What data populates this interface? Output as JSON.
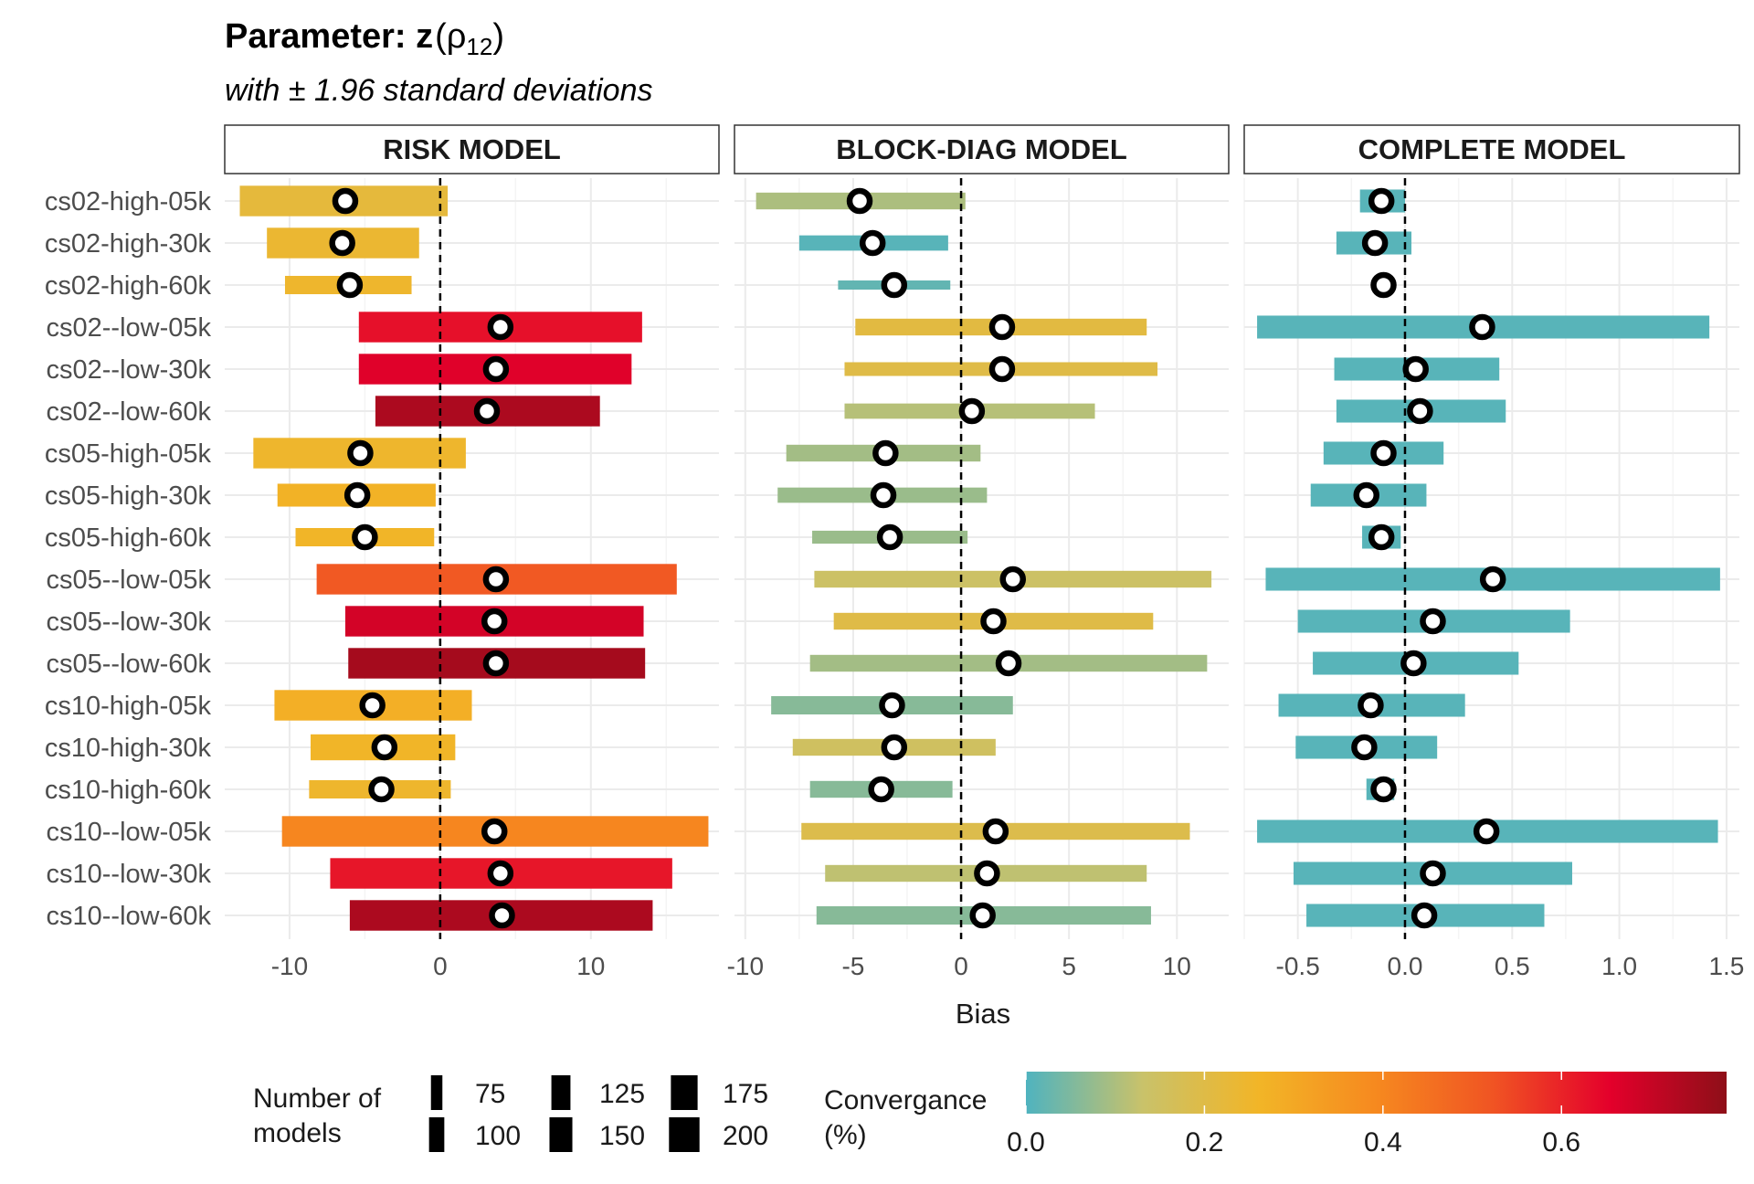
{
  "title": {
    "prefix": "Parameter: z",
    "rho": "ρ",
    "subscript": "12",
    "subtitle": "with ± 1.96 standard deviations"
  },
  "x_axis_title": "Bias",
  "legend": {
    "size_title": [
      "Number of",
      "models"
    ],
    "size_values": [
      "75",
      "100",
      "125",
      "150",
      "175",
      "200"
    ],
    "color_title": [
      "Convergance",
      "(%)"
    ],
    "color_ticks": [
      "0.0",
      "0.2",
      "0.4",
      "0.6"
    ],
    "gradient": [
      "#4fb3bf",
      "#c9c26a",
      "#f2b527",
      "#f6891f",
      "#f05423",
      "#e4002b",
      "#8e0f18"
    ]
  },
  "chart_data": {
    "type": "dot-interval",
    "rows": [
      "cs02-high-05k",
      "cs02-high-30k",
      "cs02-high-60k",
      "cs02--low-05k",
      "cs02--low-30k",
      "cs02--low-60k",
      "cs05-high-05k",
      "cs05-high-30k",
      "cs05-high-60k",
      "cs05--low-05k",
      "cs05--low-30k",
      "cs05--low-60k",
      "cs10-high-05k",
      "cs10-high-30k",
      "cs10-high-60k",
      "cs10--low-05k",
      "cs10--low-30k",
      "cs10--low-60k"
    ],
    "reference_line": 0,
    "panels": [
      {
        "label": "RISK MODEL",
        "xlim": [
          -14.3,
          18.5
        ],
        "ticks": [
          -10,
          0,
          10
        ],
        "tick_labels": [
          "-10",
          "0",
          "10"
        ],
        "bias": [
          -6.3,
          -6.5,
          -6.0,
          4.0,
          3.7,
          3.1,
          -5.3,
          -5.5,
          -5.0,
          3.7,
          3.6,
          3.7,
          -4.5,
          -3.7,
          -3.9,
          3.6,
          4.0,
          4.1
        ],
        "low": [
          -13.3,
          -11.5,
          -10.3,
          -5.4,
          -5.4,
          -4.3,
          -12.4,
          -10.8,
          -9.6,
          -8.2,
          -6.3,
          -6.1,
          -11.0,
          -8.6,
          -8.7,
          -10.5,
          -7.3,
          -6.0
        ],
        "high": [
          0.5,
          -1.4,
          -1.9,
          13.4,
          12.7,
          10.6,
          1.7,
          -0.3,
          -0.4,
          15.7,
          13.5,
          13.6,
          2.1,
          1.0,
          0.7,
          17.8,
          15.4,
          14.1
        ],
        "models": [
          200,
          200,
          120,
          200,
          200,
          200,
          200,
          150,
          120,
          200,
          200,
          200,
          200,
          170,
          120,
          200,
          200,
          200
        ],
        "convergence": [
          0.22,
          0.24,
          0.25,
          0.63,
          0.66,
          0.74,
          0.25,
          0.27,
          0.26,
          0.51,
          0.68,
          0.75,
          0.28,
          0.26,
          0.25,
          0.4,
          0.62,
          0.74
        ]
      },
      {
        "label": "BLOCK-DIAG MODEL",
        "xlim": [
          -10.5,
          12.4
        ],
        "ticks": [
          -10,
          -5,
          0,
          5,
          10
        ],
        "tick_labels": [
          "-10",
          "-5",
          "0",
          "5",
          "10"
        ],
        "bias": [
          -4.7,
          -4.1,
          -3.1,
          1.9,
          1.9,
          0.5,
          -3.5,
          -3.6,
          -3.3,
          2.4,
          1.5,
          2.2,
          -3.2,
          -3.1,
          -3.7,
          1.6,
          1.2,
          1.0
        ],
        "low": [
          -9.5,
          -7.5,
          -5.7,
          -4.9,
          -5.4,
          -5.4,
          -8.1,
          -8.5,
          -6.9,
          -6.8,
          -5.9,
          -7.0,
          -8.8,
          -7.8,
          -7.0,
          -7.4,
          -6.3,
          -6.7
        ],
        "high": [
          0.2,
          -0.6,
          -0.5,
          8.6,
          9.1,
          6.2,
          0.9,
          1.2,
          0.3,
          11.6,
          8.9,
          11.4,
          2.4,
          1.6,
          -0.4,
          10.6,
          8.6,
          8.8
        ],
        "models": [
          110,
          100,
          60,
          110,
          90,
          100,
          110,
          100,
          85,
          110,
          110,
          110,
          120,
          110,
          110,
          110,
          110,
          120
        ],
        "convergence": [
          0.1,
          0.01,
          0.02,
          0.21,
          0.2,
          0.11,
          0.09,
          0.08,
          0.08,
          0.14,
          0.2,
          0.09,
          0.06,
          0.15,
          0.06,
          0.19,
          0.12,
          0.06
        ]
      },
      {
        "label": "COMPLETE MODEL",
        "xlim": [
          -0.75,
          1.56
        ],
        "ticks": [
          -0.5,
          0.0,
          0.5,
          1.0,
          1.5
        ],
        "tick_labels": [
          "-0.5",
          "0.0",
          "0.5",
          "1.0",
          "1.5"
        ],
        "bias": [
          -0.11,
          -0.14,
          -0.1,
          0.36,
          0.05,
          0.07,
          -0.1,
          -0.18,
          -0.11,
          0.41,
          0.13,
          0.04,
          -0.16,
          -0.19,
          -0.1,
          0.38,
          0.13,
          0.09
        ],
        "low": [
          -0.21,
          -0.32,
          -0.1,
          -0.69,
          -0.33,
          -0.32,
          -0.38,
          -0.44,
          -0.2,
          -0.65,
          -0.5,
          -0.43,
          -0.59,
          -0.51,
          -0.18,
          -0.69,
          -0.52,
          -0.46
        ],
        "high": [
          0.0,
          0.03,
          -0.1,
          1.42,
          0.44,
          0.47,
          0.18,
          0.1,
          -0.02,
          1.47,
          0.77,
          0.53,
          0.28,
          0.15,
          -0.05,
          1.46,
          0.78,
          0.65
        ],
        "models": [
          150,
          150,
          100,
          150,
          150,
          150,
          150,
          150,
          150,
          150,
          150,
          150,
          150,
          150,
          140,
          150,
          150,
          150
        ],
        "convergence": [
          0.01,
          0.01,
          0.01,
          0.01,
          0.01,
          0.01,
          0.01,
          0.01,
          0.01,
          0.01,
          0.01,
          0.01,
          0.01,
          0.01,
          0.01,
          0.01,
          0.01,
          0.01
        ]
      }
    ]
  }
}
